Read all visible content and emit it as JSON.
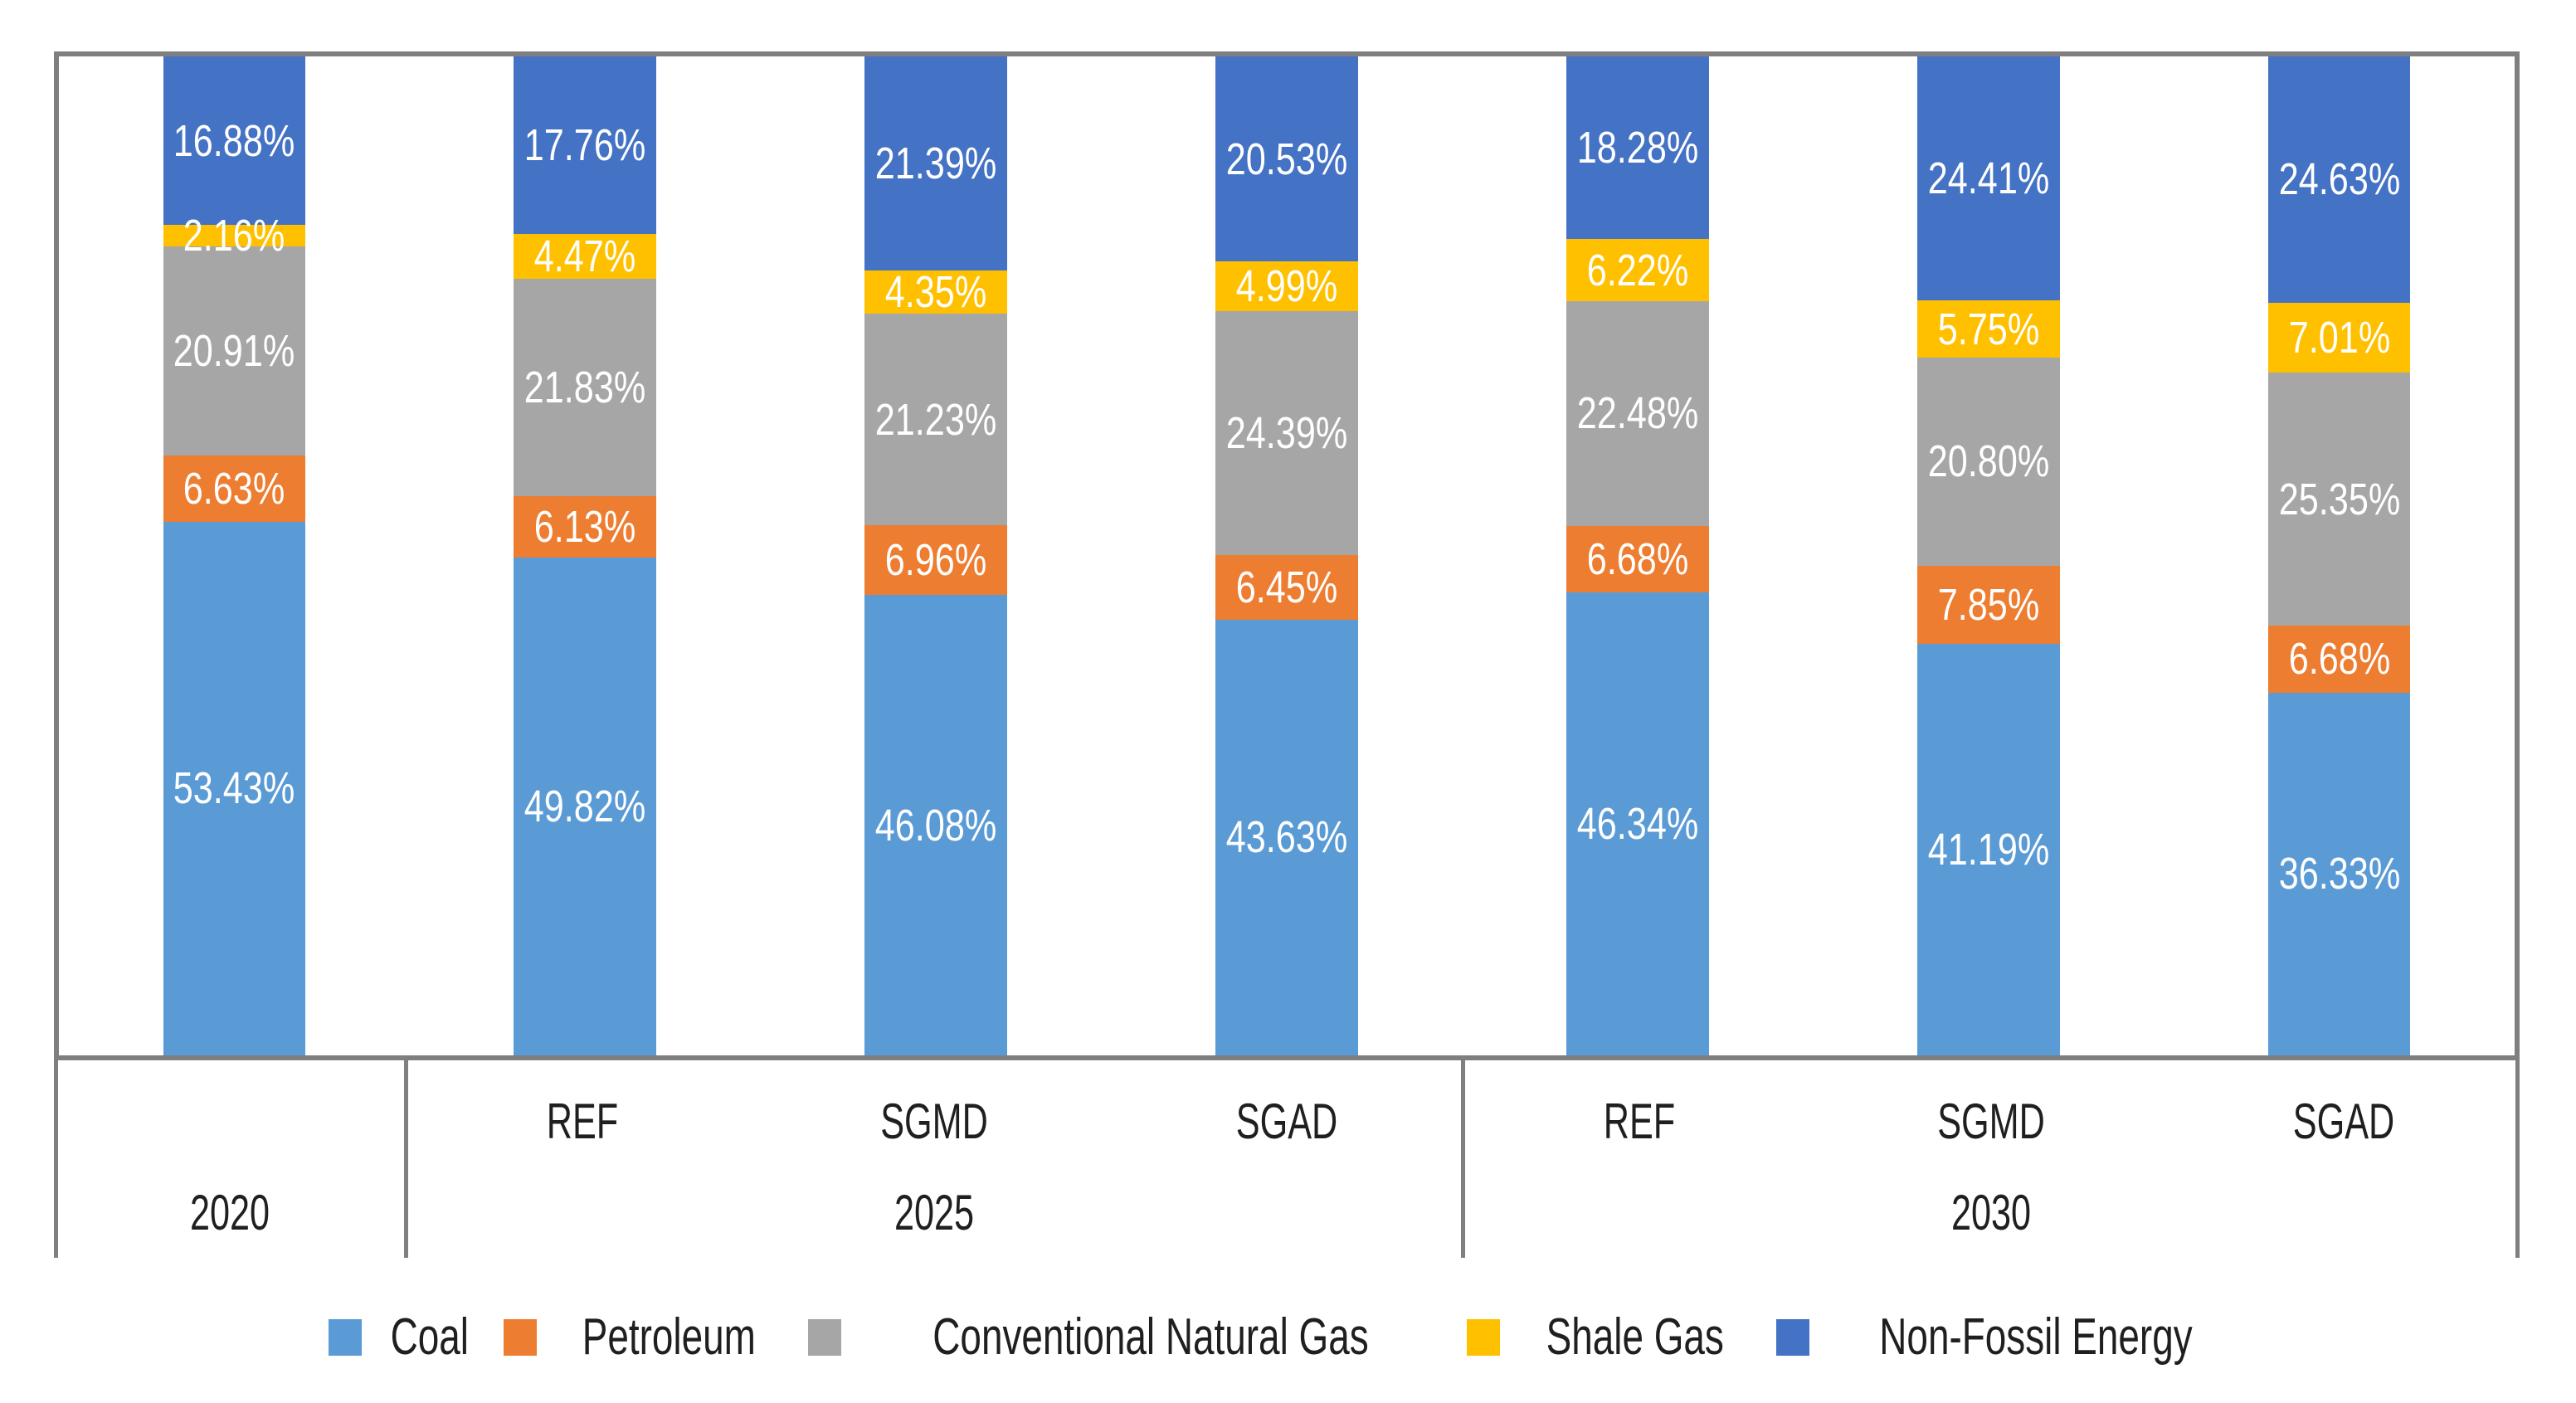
{
  "chart_data": {
    "type": "bar",
    "stacked": true,
    "percent_stacked": true,
    "title": "",
    "xlabel": "",
    "ylabel": "",
    "ylim": [
      0,
      100
    ],
    "grid": false,
    "legend_position": "bottom",
    "value_suffix": "%",
    "series": [
      {
        "name": "Coal",
        "color": "#5B9BD5"
      },
      {
        "name": "Petroleum",
        "color": "#ED7D31"
      },
      {
        "name": "Conventional Natural Gas",
        "color": "#A6A6A6"
      },
      {
        "name": "Shale Gas",
        "color": "#FFC000"
      },
      {
        "name": "Non-Fossil Energy",
        "color": "#4472C4"
      }
    ],
    "groups": [
      {
        "year": "2020",
        "bars": [
          {
            "scenario": "",
            "values": [
              53.43,
              6.63,
              20.91,
              2.16,
              16.88
            ]
          }
        ]
      },
      {
        "year": "2025",
        "bars": [
          {
            "scenario": "REF",
            "values": [
              49.82,
              6.13,
              21.83,
              4.47,
              17.76
            ]
          },
          {
            "scenario": "SGMD",
            "values": [
              46.08,
              6.96,
              21.23,
              4.35,
              21.39
            ]
          },
          {
            "scenario": "SGAD",
            "values": [
              43.63,
              6.45,
              24.39,
              4.99,
              20.53
            ]
          }
        ]
      },
      {
        "year": "2030",
        "bars": [
          {
            "scenario": "REF",
            "values": [
              46.34,
              6.68,
              22.48,
              6.22,
              18.28
            ]
          },
          {
            "scenario": "SGMD",
            "values": [
              41.19,
              7.85,
              20.8,
              5.75,
              24.41
            ]
          },
          {
            "scenario": "SGAD",
            "values": [
              36.33,
              6.68,
              25.35,
              7.01,
              24.63
            ]
          }
        ]
      }
    ]
  },
  "style": {
    "border_color": "#7f7f7f",
    "label_text_color": "#ffffff",
    "axis_text_color": "#1f1f1f",
    "bar_width_pct": 5.8
  }
}
